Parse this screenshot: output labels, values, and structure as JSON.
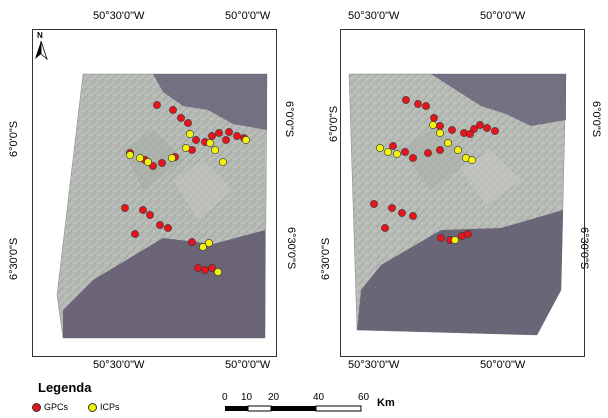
{
  "maps": [
    {
      "top_labels": [
        "50°30'0\"W",
        "50°0'0\"W"
      ],
      "bottom_labels": [
        "50°30'0\"W",
        "50°0'0\"W"
      ],
      "left_labels": [
        "6°0'0\"S",
        "6°30'0\"S"
      ],
      "right_labels": [
        "6°0'0\"S",
        "6°30'0\"S"
      ]
    },
    {
      "top_labels": [
        "50°30'0\"W",
        "50°0'0\"W"
      ],
      "bottom_labels": [
        "50°30'0\"W",
        "50°0'0\"W"
      ],
      "left_labels": [
        "6°0'0\"S",
        "6°30'0\"S"
      ],
      "right_labels": [
        "6°0'0\"S",
        "6°30'0\"S"
      ]
    }
  ],
  "north_arrow_label": "N",
  "legend": {
    "title": "Legenda",
    "items": [
      {
        "label": "GPCs",
        "color": "#e8141b"
      },
      {
        "label": "ICPs",
        "color": "#f4f40a"
      }
    ]
  },
  "scale_bar": {
    "ticks": [
      "0",
      "10",
      "20",
      "40",
      "60"
    ],
    "unit": "Km"
  },
  "colors": {
    "terrain_light": "#b8bcb6",
    "terrain_dark": "#5c5470",
    "gcp": "#e8141b",
    "icp": "#f4f40a"
  }
}
